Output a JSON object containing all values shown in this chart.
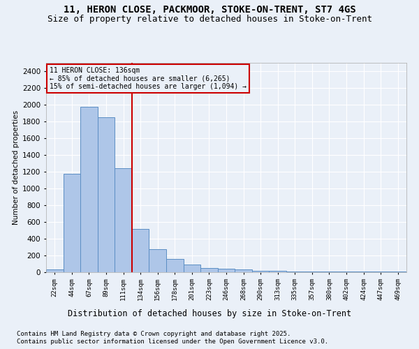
{
  "title1": "11, HERON CLOSE, PACKMOOR, STOKE-ON-TRENT, ST7 4GS",
  "title2": "Size of property relative to detached houses in Stoke-on-Trent",
  "xlabel": "Distribution of detached houses by size in Stoke-on-Trent",
  "ylabel": "Number of detached properties",
  "categories": [
    "22sqm",
    "44sqm",
    "67sqm",
    "89sqm",
    "111sqm",
    "134sqm",
    "156sqm",
    "178sqm",
    "201sqm",
    "223sqm",
    "246sqm",
    "268sqm",
    "290sqm",
    "313sqm",
    "335sqm",
    "357sqm",
    "380sqm",
    "402sqm",
    "424sqm",
    "447sqm",
    "469sqm"
  ],
  "values": [
    30,
    1175,
    1975,
    1850,
    1245,
    520,
    275,
    155,
    90,
    50,
    45,
    32,
    20,
    15,
    12,
    8,
    5,
    5,
    5,
    5,
    5
  ],
  "bar_color": "#aec6e8",
  "bar_edge_color": "#5b8ec4",
  "subject_line_index": 5,
  "subject_line_color": "#cc0000",
  "annotation_title": "11 HERON CLOSE: 136sqm",
  "annotation_line1": "← 85% of detached houses are smaller (6,265)",
  "annotation_line2": "15% of semi-detached houses are larger (1,094) →",
  "annotation_box_color": "#cc0000",
  "footer1": "Contains HM Land Registry data © Crown copyright and database right 2025.",
  "footer2": "Contains public sector information licensed under the Open Government Licence v3.0.",
  "ylim": [
    0,
    2500
  ],
  "yticks": [
    0,
    200,
    400,
    600,
    800,
    1000,
    1200,
    1400,
    1600,
    1800,
    2000,
    2200,
    2400
  ],
  "bg_color": "#eaf0f8",
  "grid_color": "#ffffff",
  "title_fontsize": 10,
  "subtitle_fontsize": 9,
  "footer_fontsize": 6.5
}
